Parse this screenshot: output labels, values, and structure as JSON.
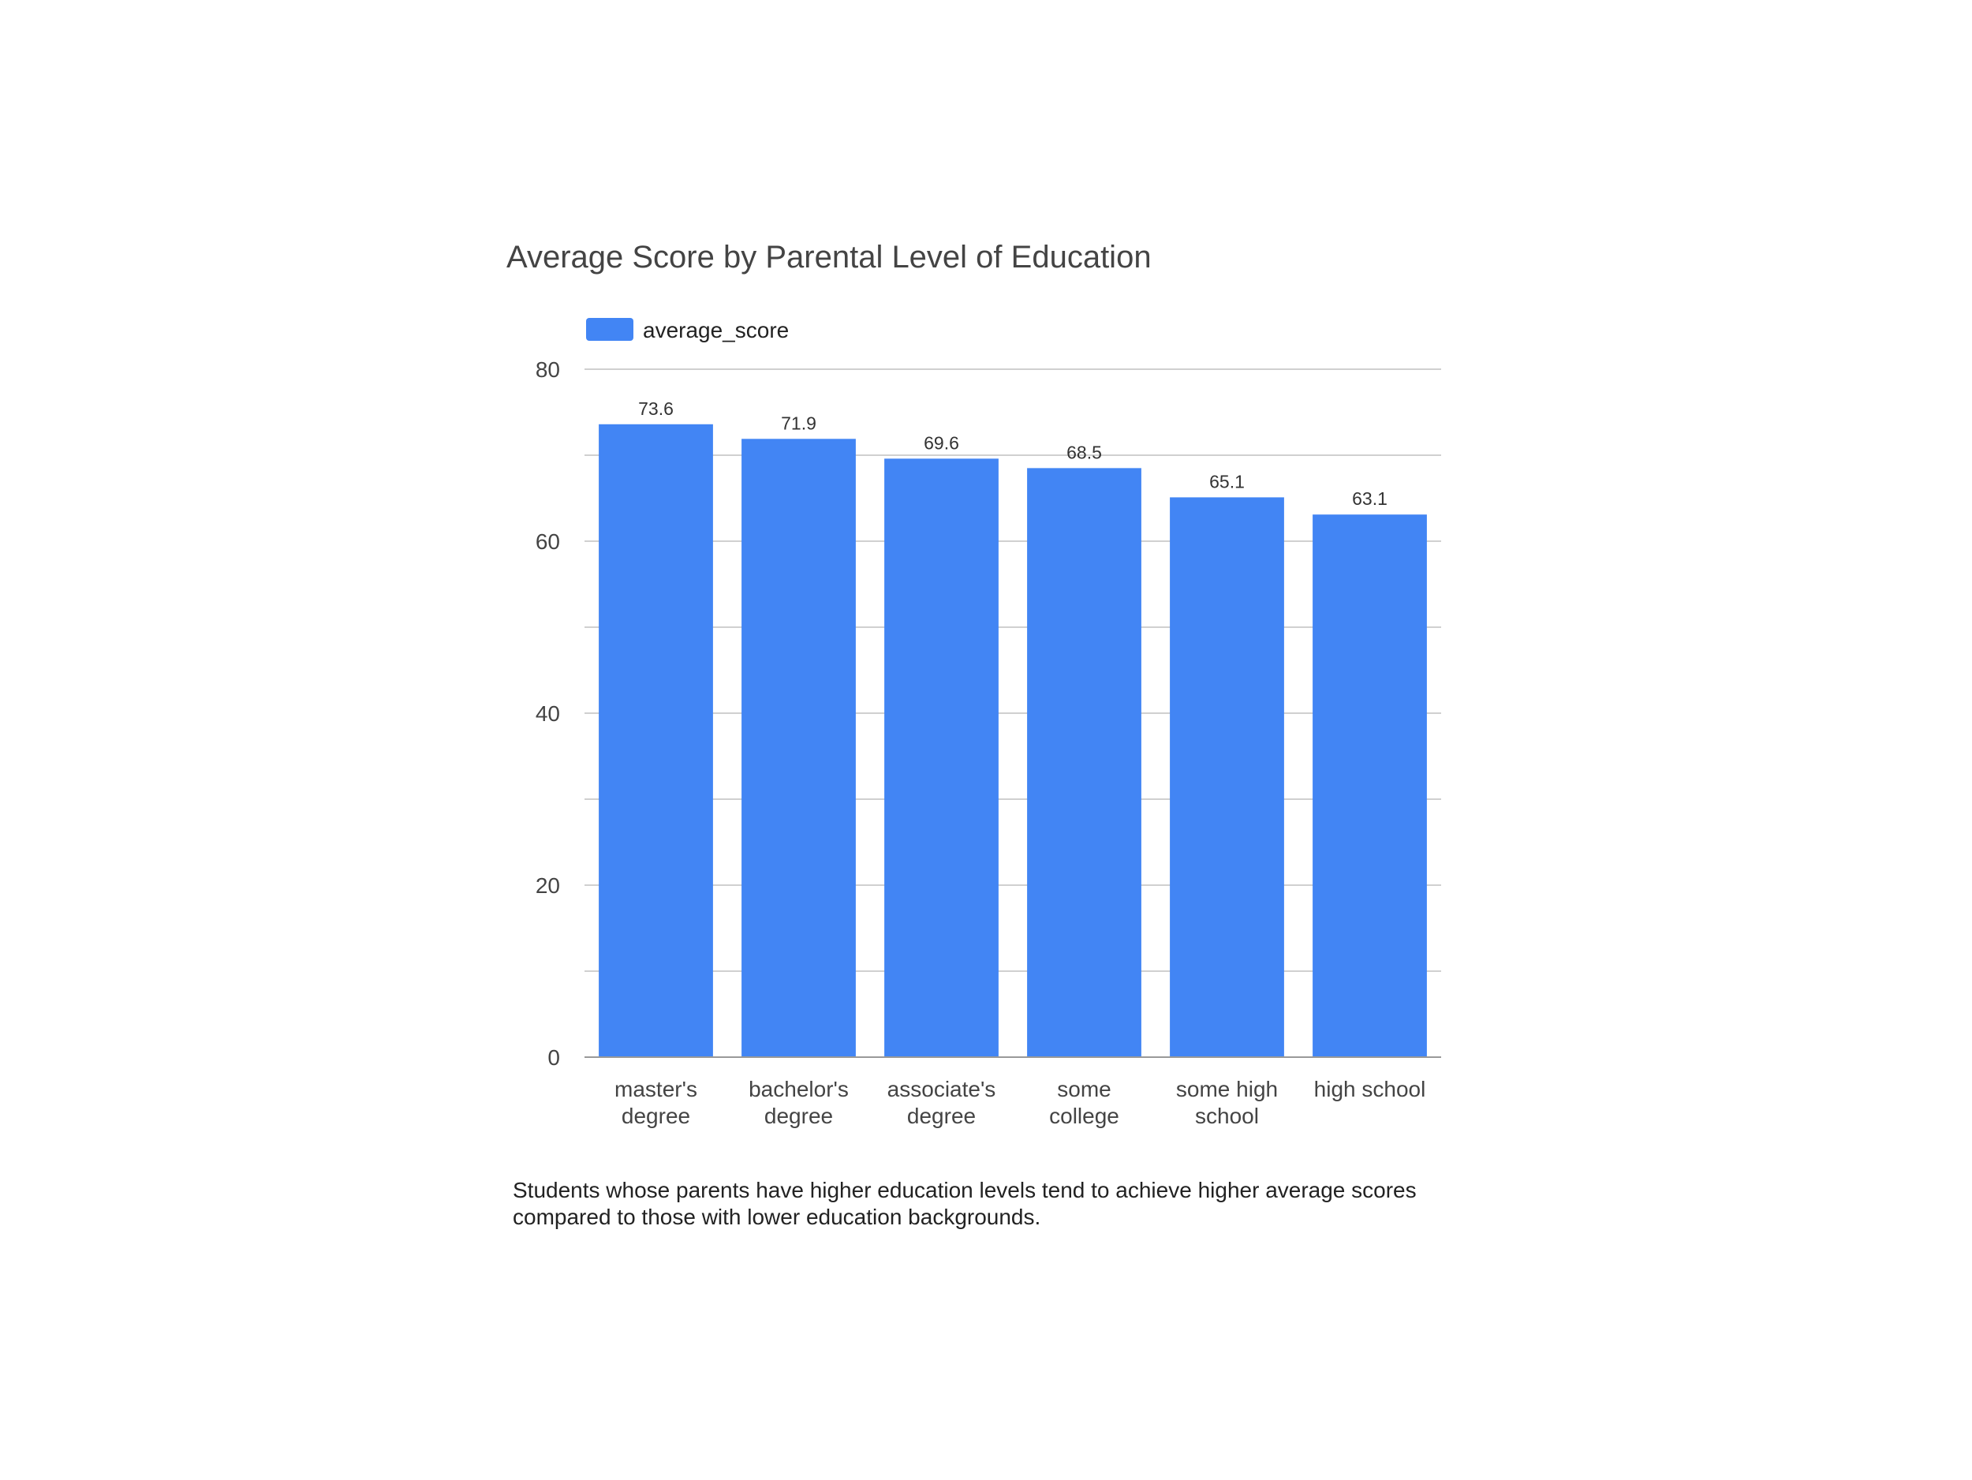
{
  "chart_data": {
    "type": "bar",
    "title": "Average Score by Parental Level of Education",
    "categories": [
      [
        "master's",
        "degree"
      ],
      [
        "bachelor's",
        "degree"
      ],
      [
        "associate's",
        "degree"
      ],
      [
        "some",
        "college"
      ],
      [
        "some high",
        "school"
      ],
      [
        "high school"
      ]
    ],
    "series": [
      {
        "name": "average_score",
        "values": [
          73.6,
          71.9,
          69.6,
          68.5,
          65.1,
          63.1
        ],
        "data_labels": [
          "73.6",
          "71.9",
          "69.6",
          "68.5",
          "65.1",
          "63.1"
        ],
        "color": "#4285f4"
      }
    ],
    "ylim": [
      0,
      80
    ],
    "yticks": [
      "0",
      "20",
      "40",
      "60",
      "80"
    ],
    "minor_gridlines": [
      10,
      30,
      50,
      70
    ],
    "grid": true,
    "legend_position": "top-left",
    "xlabel": "",
    "ylabel": ""
  },
  "caption": "Students whose parents have higher education levels tend to achieve higher average scores compared to those with lower education backgrounds.",
  "colors": {
    "bar": "#4285f4",
    "gridline": "#d0d0d0",
    "axis": "#999999"
  }
}
